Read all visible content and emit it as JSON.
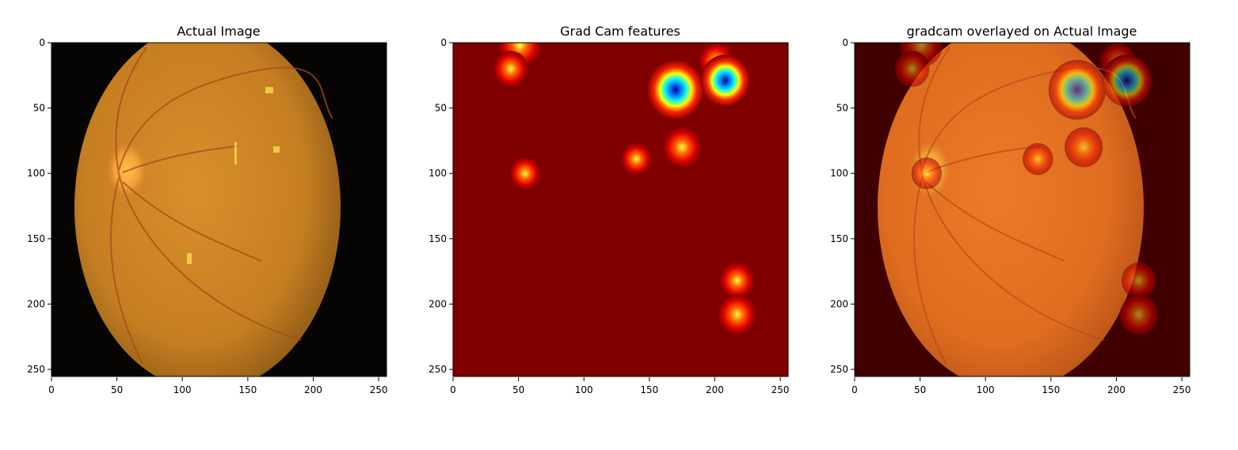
{
  "panels": [
    {
      "title": "Actual Image",
      "content": "fundus",
      "x_ticks": [
        "0",
        "50",
        "100",
        "150",
        "200",
        "250"
      ],
      "y_ticks": [
        "0",
        "50",
        "100",
        "150",
        "200",
        "250"
      ]
    },
    {
      "title": "Grad Cam features",
      "content": "heatmap",
      "x_ticks": [
        "0",
        "50",
        "100",
        "150",
        "200",
        "250"
      ],
      "y_ticks": [
        "0",
        "50",
        "100",
        "150",
        "200",
        "250"
      ]
    },
    {
      "title": "gradcam overlayed on Actual Image",
      "content": "overlay",
      "x_ticks": [
        "0",
        "50",
        "100",
        "150",
        "200",
        "250"
      ],
      "y_ticks": [
        "0",
        "50",
        "100",
        "150",
        "200",
        "250"
      ]
    }
  ],
  "image_extent": [
    0,
    256
  ],
  "colors": {
    "heatmap_background": "#800000",
    "fundus_orange": "#d88828",
    "fundus_dark": "#7a4a10",
    "overlay_background": "#400000"
  },
  "heatmap_spots": [
    {
      "x": 51,
      "y": 2,
      "intensity": 0.6
    },
    {
      "x": 44,
      "y": 20,
      "intensity": 0.4
    },
    {
      "x": 170,
      "y": 36,
      "intensity": 1.0
    },
    {
      "x": 201,
      "y": 14,
      "intensity": 0.4
    },
    {
      "x": 208,
      "y": 29,
      "intensity": 0.8
    },
    {
      "x": 175,
      "y": 80,
      "intensity": 0.5
    },
    {
      "x": 140,
      "y": 89,
      "intensity": 0.3
    },
    {
      "x": 55,
      "y": 100,
      "intensity": 0.3
    },
    {
      "x": 217,
      "y": 182,
      "intensity": 0.4
    },
    {
      "x": 217,
      "y": 208,
      "intensity": 0.5
    }
  ]
}
